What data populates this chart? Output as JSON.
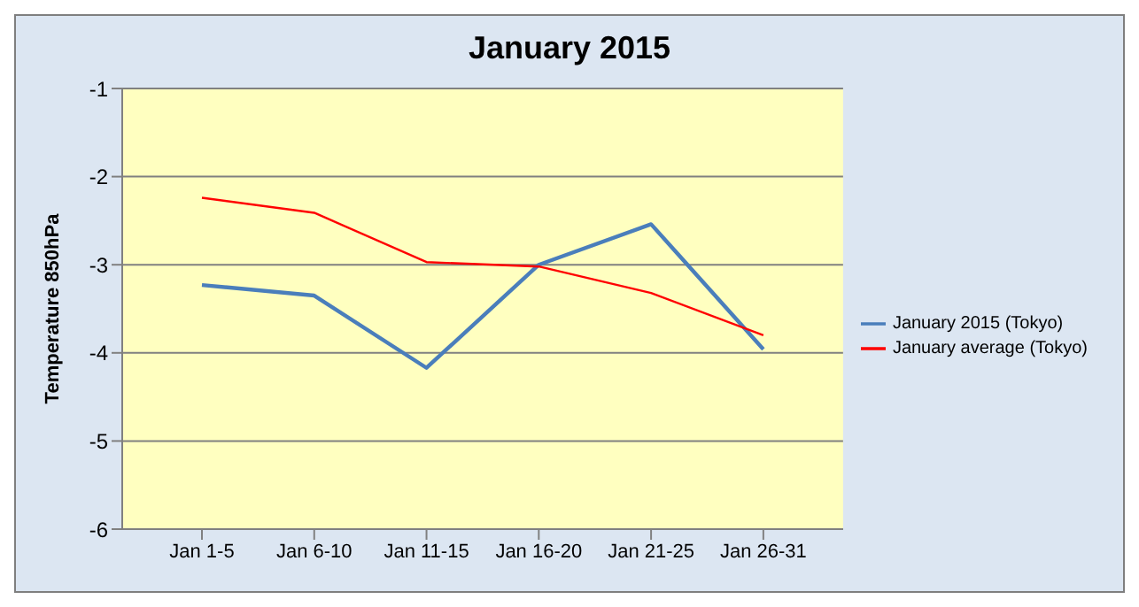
{
  "chart_data": {
    "type": "line",
    "title": "January 2015",
    "ylabel": "Temperature 850hPa",
    "categories": [
      "Jan 1-5",
      "Jan 6-10",
      "Jan 11-15",
      "Jan 16-20",
      "Jan 21-25",
      "Jan 26-31"
    ],
    "series": [
      {
        "name": "January 2015 (Tokyo)",
        "color": "#4a7ebb",
        "values": [
          -3.23,
          -3.35,
          -4.17,
          -3.0,
          -2.54,
          -3.96
        ]
      },
      {
        "name": "January average (Tokyo)",
        "color": "#ff0000",
        "values": [
          -2.24,
          -2.41,
          -2.97,
          -3.02,
          -3.32,
          -3.8
        ]
      }
    ],
    "ylim": [
      -6,
      -1
    ],
    "yticks": [
      -6,
      -5,
      -4,
      -3,
      -2,
      -1
    ],
    "grid": "y",
    "legend": "right",
    "marker": "none",
    "line_style": "solid"
  }
}
